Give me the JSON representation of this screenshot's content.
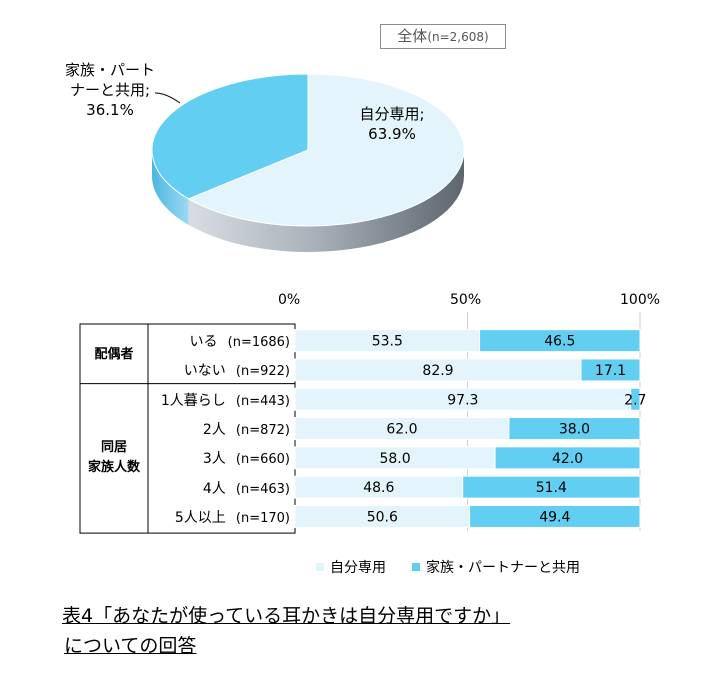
{
  "badge": {
    "label": "全体",
    "n": "(n=2,608)"
  },
  "pie": {
    "slices": [
      {
        "name": "自分専用",
        "value": 63.9,
        "label": "自分専用;",
        "value_label": "63.9%",
        "color": "#e4f4fc"
      },
      {
        "name": "家族・パートナーと共用",
        "value": 36.1,
        "label_line1": "家族・パート",
        "label_line2": "ナーと共用;",
        "value_label": "36.1%",
        "color": "#62cff2"
      }
    ]
  },
  "chart_data": {
    "type": "bar",
    "orientation": "horizontal",
    "stacked": "100%",
    "x_ticks": [
      "0%",
      "50%",
      "100%"
    ],
    "xlim": [
      0,
      100
    ],
    "groups": [
      {
        "label_line1": "配偶者",
        "label_line2": "",
        "rows": [
          0,
          1
        ]
      },
      {
        "label_line1": "同居",
        "label_line2": "家族人数",
        "rows": [
          2,
          3,
          4,
          5,
          6
        ]
      }
    ],
    "categories": [
      {
        "label": "いる",
        "n": "(n=1686)"
      },
      {
        "label": "いない",
        "n": "(n=922)"
      },
      {
        "label": "1人暮らし",
        "n": "(n=443)"
      },
      {
        "label": "2人",
        "n": "(n=872)"
      },
      {
        "label": "3人",
        "n": "(n=660)"
      },
      {
        "label": "4人",
        "n": "(n=463)"
      },
      {
        "label": "5人以上",
        "n": "(n=170)"
      }
    ],
    "series": [
      {
        "name": "自分専用",
        "color": "#e4f4fc",
        "values": [
          53.5,
          82.9,
          97.3,
          62.0,
          58.0,
          48.6,
          50.6
        ],
        "labels": [
          "53.5",
          "82.9",
          "97.3",
          "62.0",
          "58.0",
          "48.6",
          "50.6"
        ]
      },
      {
        "name": "家族・パートナーと共用",
        "color": "#62cff2",
        "values": [
          46.5,
          17.1,
          2.7,
          38.0,
          42.0,
          51.4,
          49.4
        ],
        "labels": [
          "46.5",
          "17.1",
          "2.7",
          "38.0",
          "42.0",
          "51.4",
          "49.4"
        ]
      }
    ],
    "legend_position": "bottom"
  },
  "caption": {
    "line1": "表4「あなたが使っている耳かきは自分専用ですか」",
    "line2": "についての回答"
  }
}
